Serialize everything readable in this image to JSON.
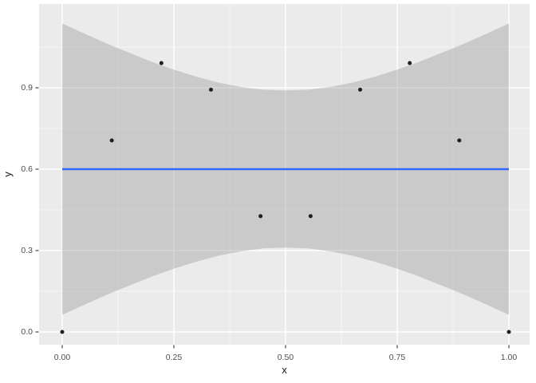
{
  "chart_data": {
    "type": "scatter",
    "title": "",
    "xlabel": "x",
    "ylabel": "y",
    "legend": "none",
    "grid": true,
    "x_ticks": [
      0,
      0.25,
      0.5,
      0.75,
      1
    ],
    "x_tick_labels": [
      "0.00",
      "0.25",
      "0.50",
      "0.75",
      "1.00"
    ],
    "x_minor_ticks": [
      0.125,
      0.375,
      0.625,
      0.875
    ],
    "y_ticks": [
      0,
      0.3,
      0.6,
      0.9
    ],
    "y_tick_labels": [
      "0.0",
      "0.3",
      "0.6",
      "0.9"
    ],
    "y_minor_ticks": [
      0.15,
      0.45,
      0.75,
      1.05
    ],
    "xlim": [
      -0.0518,
      1.0464
    ],
    "ylim": [
      -0.047,
      1.2088
    ],
    "points": [
      [
        0.0,
        0.0
      ],
      [
        0.111,
        0.706
      ],
      [
        0.222,
        0.991
      ],
      [
        0.333,
        0.893
      ],
      [
        0.444,
        0.427
      ],
      [
        0.556,
        0.427
      ],
      [
        0.667,
        0.893
      ],
      [
        0.778,
        0.991
      ],
      [
        0.889,
        0.706
      ],
      [
        1.0,
        0.0
      ]
    ],
    "smooth": {
      "method": "lm",
      "line_y": 0.6,
      "x_start": 0,
      "x_end": 1,
      "ribbon_x": [
        0,
        0.05,
        0.1,
        0.15,
        0.2,
        0.25,
        0.3,
        0.35,
        0.4,
        0.45,
        0.5,
        0.55,
        0.6,
        0.65,
        0.7,
        0.75,
        0.8,
        0.85,
        0.9,
        0.95,
        1
      ],
      "ribbon_lower": [
        0.063,
        0.101,
        0.137,
        0.171,
        0.204,
        0.233,
        0.259,
        0.281,
        0.297,
        0.308,
        0.311,
        0.308,
        0.297,
        0.281,
        0.259,
        0.233,
        0.204,
        0.171,
        0.137,
        0.101,
        0.063
      ],
      "ribbon_upper": [
        1.137,
        1.099,
        1.063,
        1.029,
        0.996,
        0.967,
        0.941,
        0.919,
        0.903,
        0.893,
        0.89,
        0.893,
        0.903,
        0.919,
        0.941,
        0.967,
        0.996,
        1.029,
        1.063,
        1.099,
        1.137
      ]
    },
    "colors": {
      "figure_background": "#FFFFFF",
      "panel_background": "#EBEBEB",
      "grid": "#FFFFFF",
      "ribbon": "#999999",
      "ribbon_opacity": 0.4,
      "smooth_line": "#3366FF",
      "point": "#1F1F1F",
      "tick_text": "#4D4D4D",
      "axis_title_text": "#1A1A1A",
      "tick_mark": "#333333"
    }
  }
}
